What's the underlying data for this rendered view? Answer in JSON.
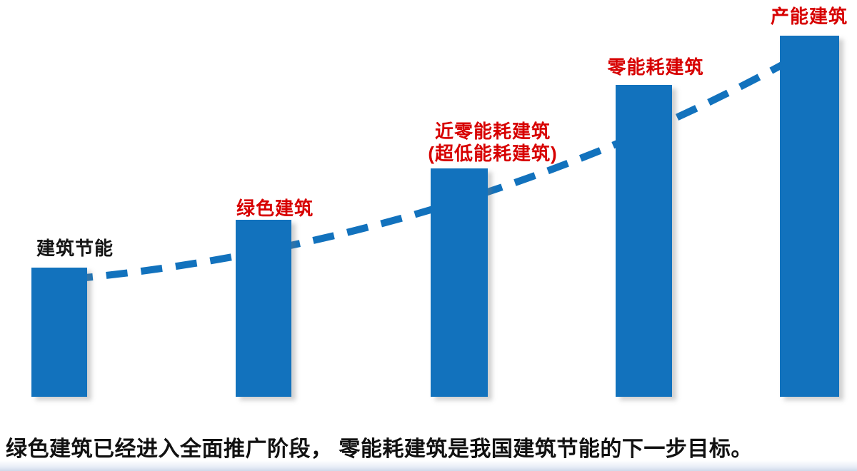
{
  "chart_data": {
    "type": "bar",
    "title": "",
    "xlabel": "",
    "ylabel": "",
    "categories": [
      "建筑节能",
      "绿色建筑",
      "近零能耗建筑（超低能耗建筑）",
      "零能耗建筑",
      "产能建筑"
    ],
    "values": [
      181,
      248,
      320,
      437,
      506
    ],
    "value_unit": "relative height (px), no numeric axis shown",
    "axes_shown": false,
    "grid": false,
    "legend": "none",
    "bar_color": "#1272bd",
    "trendline": {
      "style": "dashed",
      "shape": "upward convex curve through bar tops",
      "color": "#1272bd"
    }
  },
  "labels": {
    "bar1": "建筑节能",
    "bar2": "绿色建筑",
    "bar3_line1": "近零能耗建筑",
    "bar3_line2": "(超低能耗建筑)",
    "bar4": "零能耗建筑",
    "bar5": "产能建筑"
  },
  "caption": "绿色建筑已经进入全面推广阶段， 零能耗建筑是我国建筑节能的下一步目标。",
  "colors": {
    "bar_blue": "#1272bd",
    "trend_blue": "#1272bd",
    "label_red": "#d70000",
    "label_black": "#151515",
    "caption_black": "#111111",
    "bottom_strip": "#cfd9ea"
  }
}
